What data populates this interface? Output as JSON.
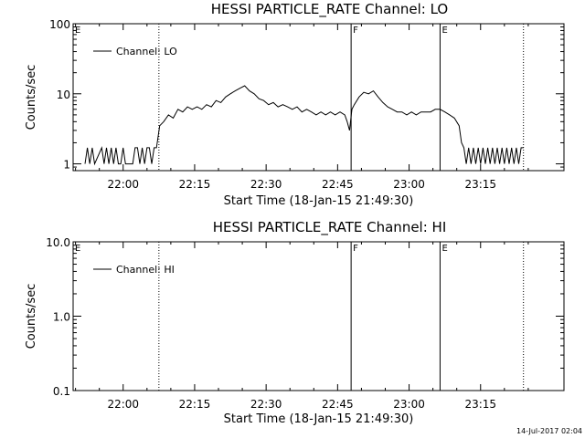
{
  "chart_data": [
    {
      "type": "line",
      "title": "HESSI PARTICLE_RATE Channel: LO",
      "xlabel": "Start Time (18-Jan-15 21:49:30)",
      "ylabel": "Counts/sec",
      "yscale": "log",
      "ylim": [
        0.8,
        100
      ],
      "xlim": [
        "21:49:30",
        "23:32:30"
      ],
      "x_ticks": [
        "22:00",
        "22:15",
        "22:30",
        "22:45",
        "23:00",
        "23:15"
      ],
      "y_ticks": [
        "1",
        "10",
        "100"
      ],
      "legend": {
        "entries": [
          "Channel: LO"
        ],
        "placement": "top-left"
      },
      "vlines": [
        {
          "time": "22:07:30",
          "style": "dotted",
          "label": ""
        },
        {
          "time": "22:47:50",
          "style": "solid",
          "label": "F"
        },
        {
          "time": "23:06:30",
          "style": "solid",
          "label": "E"
        },
        {
          "time": "23:24:00",
          "style": "dotted",
          "label": ""
        }
      ],
      "left_label": "E",
      "series": [
        {
          "name": "Channel: LO",
          "points": [
            [
              "21:52:00",
              1
            ],
            [
              "21:52:30",
              1.7
            ],
            [
              "21:53:00",
              1
            ],
            [
              "21:53:30",
              1.7
            ],
            [
              "21:54:00",
              1
            ],
            [
              "21:55:30",
              1.7
            ],
            [
              "21:56:00",
              1
            ],
            [
              "21:56:30",
              1.7
            ],
            [
              "21:57:00",
              1
            ],
            [
              "21:57:30",
              1.7
            ],
            [
              "21:58:00",
              1
            ],
            [
              "21:58:30",
              1.7
            ],
            [
              "21:59:00",
              1
            ],
            [
              "21:59:30",
              1
            ],
            [
              "22:00:00",
              1.7
            ],
            [
              "22:00:30",
              1
            ],
            [
              "22:02:00",
              1
            ],
            [
              "22:02:30",
              1.7
            ],
            [
              "22:03:00",
              1.7
            ],
            [
              "22:03:30",
              1
            ],
            [
              "22:04:00",
              1.7
            ],
            [
              "22:04:30",
              1
            ],
            [
              "22:05:00",
              1.7
            ],
            [
              "22:05:30",
              1.7
            ],
            [
              "22:06:00",
              1
            ],
            [
              "22:06:30",
              1.7
            ],
            [
              "22:07:00",
              1.7
            ],
            [
              "22:07:40",
              3.5
            ],
            [
              "22:08:30",
              4
            ],
            [
              "22:09:30",
              5
            ],
            [
              "22:10:30",
              4.5
            ],
            [
              "22:11:30",
              6
            ],
            [
              "22:12:30",
              5.5
            ],
            [
              "22:13:30",
              6.5
            ],
            [
              "22:14:30",
              6
            ],
            [
              "22:15:30",
              6.5
            ],
            [
              "22:16:30",
              6
            ],
            [
              "22:17:30",
              7
            ],
            [
              "22:18:30",
              6.5
            ],
            [
              "22:19:30",
              8
            ],
            [
              "22:20:30",
              7.5
            ],
            [
              "22:21:30",
              9
            ],
            [
              "22:22:30",
              10
            ],
            [
              "22:23:30",
              11
            ],
            [
              "22:24:30",
              12
            ],
            [
              "22:25:30",
              13
            ],
            [
              "22:26:30",
              11
            ],
            [
              "22:27:30",
              10
            ],
            [
              "22:28:30",
              8.5
            ],
            [
              "22:29:30",
              8
            ],
            [
              "22:30:30",
              7
            ],
            [
              "22:31:30",
              7.5
            ],
            [
              "22:32:30",
              6.5
            ],
            [
              "22:33:30",
              7
            ],
            [
              "22:34:30",
              6.5
            ],
            [
              "22:35:30",
              6
            ],
            [
              "22:36:30",
              6.5
            ],
            [
              "22:37:30",
              5.5
            ],
            [
              "22:38:30",
              6
            ],
            [
              "22:39:30",
              5.5
            ],
            [
              "22:40:30",
              5
            ],
            [
              "22:41:30",
              5.5
            ],
            [
              "22:42:30",
              5
            ],
            [
              "22:43:30",
              5.5
            ],
            [
              "22:44:30",
              5
            ],
            [
              "22:45:30",
              5.5
            ],
            [
              "22:46:30",
              5
            ],
            [
              "22:47:00",
              4
            ],
            [
              "22:47:30",
              3
            ],
            [
              "22:48:00",
              6
            ],
            [
              "22:48:30",
              7
            ],
            [
              "22:49:30",
              9
            ],
            [
              "22:50:30",
              10.5
            ],
            [
              "22:51:30",
              10
            ],
            [
              "22:52:30",
              11
            ],
            [
              "22:53:30",
              9
            ],
            [
              "22:54:30",
              7.5
            ],
            [
              "22:55:30",
              6.5
            ],
            [
              "22:56:30",
              6
            ],
            [
              "22:57:30",
              5.5
            ],
            [
              "22:58:30",
              5.5
            ],
            [
              "22:59:30",
              5
            ],
            [
              "23:00:30",
              5.5
            ],
            [
              "23:01:30",
              5
            ],
            [
              "23:02:30",
              5.5
            ],
            [
              "23:03:30",
              5.5
            ],
            [
              "23:04:30",
              5.5
            ],
            [
              "23:05:30",
              6
            ],
            [
              "23:06:30",
              6
            ],
            [
              "23:07:30",
              5.5
            ],
            [
              "23:08:30",
              5
            ],
            [
              "23:09:30",
              4.5
            ],
            [
              "23:10:30",
              3.5
            ],
            [
              "23:11:00",
              2
            ],
            [
              "23:11:30",
              1.7
            ],
            [
              "23:12:00",
              1
            ],
            [
              "23:12:30",
              1.7
            ],
            [
              "23:13:00",
              1
            ],
            [
              "23:13:30",
              1.7
            ],
            [
              "23:14:00",
              1
            ],
            [
              "23:14:30",
              1.7
            ],
            [
              "23:15:00",
              1
            ],
            [
              "23:15:30",
              1.7
            ],
            [
              "23:16:00",
              1
            ],
            [
              "23:16:30",
              1.7
            ],
            [
              "23:17:00",
              1
            ],
            [
              "23:17:30",
              1.7
            ],
            [
              "23:18:00",
              1
            ],
            [
              "23:18:30",
              1.7
            ],
            [
              "23:19:00",
              1
            ],
            [
              "23:19:30",
              1.7
            ],
            [
              "23:20:00",
              1
            ],
            [
              "23:20:30",
              1.7
            ],
            [
              "23:21:00",
              1
            ],
            [
              "23:21:30",
              1.7
            ],
            [
              "23:22:00",
              1
            ],
            [
              "23:22:30",
              1.7
            ],
            [
              "23:23:00",
              1
            ],
            [
              "23:23:30",
              1.7
            ],
            [
              "23:24:00",
              1.7
            ]
          ]
        }
      ]
    },
    {
      "type": "line",
      "title": "HESSI PARTICLE_RATE Channel: HI",
      "xlabel": "Start Time (18-Jan-15 21:49:30)",
      "ylabel": "Counts/sec",
      "yscale": "log",
      "ylim": [
        0.1,
        10
      ],
      "xlim": [
        "21:49:30",
        "23:32:30"
      ],
      "x_ticks": [
        "22:00",
        "22:15",
        "22:30",
        "22:45",
        "23:00",
        "23:15"
      ],
      "y_ticks": [
        "0.1",
        "1.0",
        "10.0"
      ],
      "legend": {
        "entries": [
          "Channel: HI"
        ],
        "placement": "top-left"
      },
      "vlines": [
        {
          "time": "22:07:30",
          "style": "dotted",
          "label": ""
        },
        {
          "time": "22:47:50",
          "style": "solid",
          "label": "F"
        },
        {
          "time": "23:06:30",
          "style": "solid",
          "label": "E"
        },
        {
          "time": "23:24:00",
          "style": "dotted",
          "label": ""
        }
      ],
      "left_label": "E",
      "series": [
        {
          "name": "Channel: HI",
          "points": []
        }
      ]
    }
  ],
  "timestamp": "14-Jul-2017 02:04"
}
